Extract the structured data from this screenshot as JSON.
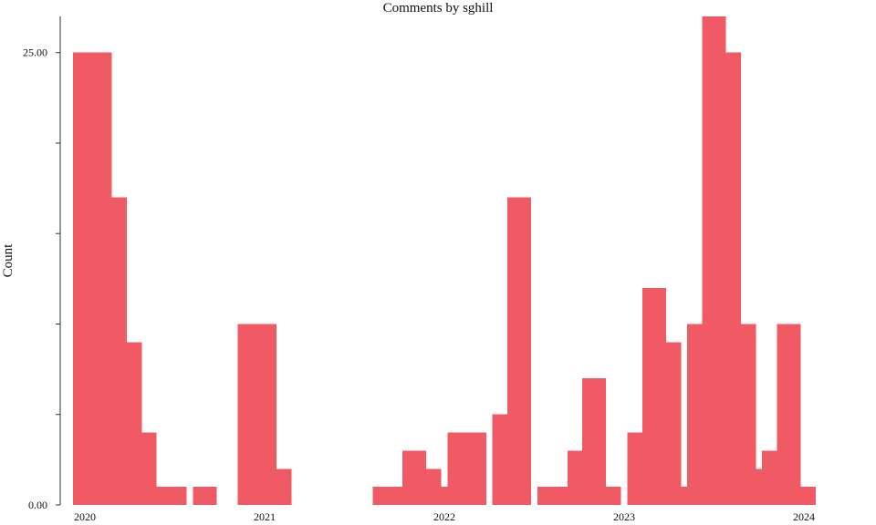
{
  "chart_data": {
    "type": "bar",
    "title": "Comments by sghill",
    "xlabel": "",
    "ylabel": "Count",
    "bar_color": "#f05a64",
    "x_ticks": [
      "2020",
      "2021",
      "2022",
      "2023",
      "2024"
    ],
    "y_ticks": [
      "0.00",
      "25.00"
    ],
    "ylim": [
      0,
      27
    ],
    "grid": false,
    "legend": "none",
    "x_start": "2020-01-01",
    "series": [
      {
        "values": [
          {
            "month": "2020-01",
            "value": 25
          },
          {
            "month": "2020-02",
            "value": 25
          },
          {
            "month": "2020-03",
            "value": 17
          },
          {
            "month": "2020-04",
            "value": 9
          },
          {
            "month": "2020-05",
            "value": 4
          },
          {
            "month": "2020-06",
            "value": 1
          },
          {
            "month": "2020-07",
            "value": 1
          },
          {
            "month": "2020-09",
            "value": 1
          },
          {
            "month": "2020-12",
            "value": 10
          },
          {
            "month": "2021-01",
            "value": 10
          },
          {
            "month": "2021-02",
            "value": 2
          },
          {
            "month": "2021-09",
            "value": 1
          },
          {
            "month": "2021-10",
            "value": 1
          },
          {
            "month": "2021-11",
            "value": 3
          },
          {
            "month": "2021-12",
            "value": 2
          },
          {
            "month": "2022-01",
            "value": 1
          },
          {
            "month": "2022-02",
            "value": 4
          },
          {
            "month": "2022-03",
            "value": 4
          },
          {
            "month": "2022-05",
            "value": 5
          },
          {
            "month": "2022-06",
            "value": 17
          },
          {
            "month": "2022-08",
            "value": 1
          },
          {
            "month": "2022-09",
            "value": 1
          },
          {
            "month": "2022-10",
            "value": 3
          },
          {
            "month": "2022-11",
            "value": 7
          },
          {
            "month": "2022-12",
            "value": 1
          },
          {
            "month": "2023-02",
            "value": 4
          },
          {
            "month": "2023-03",
            "value": 12
          },
          {
            "month": "2023-04",
            "value": 9
          },
          {
            "month": "2023-05",
            "value": 1
          },
          {
            "month": "2023-06",
            "value": 10
          },
          {
            "month": "2023-07",
            "value": 27
          },
          {
            "month": "2023-08",
            "value": 25
          },
          {
            "month": "2023-09",
            "value": 10
          },
          {
            "month": "2023-10",
            "value": 2
          },
          {
            "month": "2023-11",
            "value": 3
          },
          {
            "month": "2023-12",
            "value": 10
          },
          {
            "month": "2024-01",
            "value": 1
          }
        ]
      }
    ]
  }
}
